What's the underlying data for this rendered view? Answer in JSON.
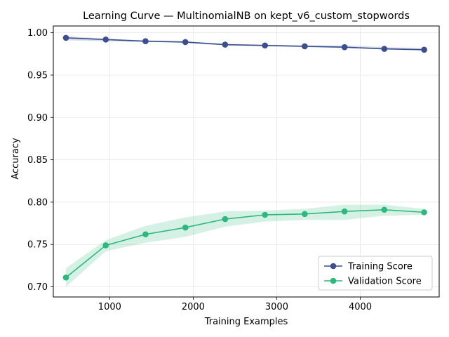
{
  "chart_data": {
    "type": "line",
    "title": "Learning Curve — MultinomialNB on kept_v6_custom_stopwords",
    "xlabel": "Training Examples",
    "ylabel": "Accuracy",
    "xlim": [
      325,
      4945
    ],
    "ylim": [
      0.688,
      1.008
    ],
    "x_ticks": [
      1000,
      2000,
      3000,
      4000
    ],
    "x_tick_labels": [
      "1000",
      "2000",
      "3000",
      "4000"
    ],
    "y_ticks": [
      0.7,
      0.75,
      0.8,
      0.85,
      0.9,
      0.95,
      1.0
    ],
    "y_tick_labels": [
      "0.70",
      "0.75",
      "0.80",
      "0.85",
      "0.90",
      "0.95",
      "1.00"
    ],
    "grid": true,
    "legend_position": "bottom-right",
    "x": [
      476,
      953,
      1429,
      1906,
      2382,
      2859,
      3335,
      3812,
      4288,
      4765
    ],
    "series": [
      {
        "name": "Training Score",
        "color": "#3b4f8e",
        "values": [
          0.994,
          0.992,
          0.99,
          0.989,
          0.986,
          0.985,
          0.984,
          0.983,
          0.981,
          0.98
        ],
        "band_lower": [
          0.991,
          0.99,
          0.989,
          0.988,
          0.985,
          0.984,
          0.983,
          0.982,
          0.98,
          0.979
        ],
        "band_upper": [
          0.996,
          0.993,
          0.991,
          0.99,
          0.987,
          0.986,
          0.985,
          0.985,
          0.983,
          0.982
        ]
      },
      {
        "name": "Validation Score",
        "color": "#2db87d",
        "values": [
          0.711,
          0.749,
          0.762,
          0.77,
          0.78,
          0.785,
          0.786,
          0.789,
          0.791,
          0.788
        ],
        "band_lower": [
          0.7,
          0.742,
          0.752,
          0.759,
          0.771,
          0.777,
          0.779,
          0.779,
          0.784,
          0.785
        ],
        "band_upper": [
          0.722,
          0.755,
          0.772,
          0.782,
          0.789,
          0.79,
          0.792,
          0.797,
          0.797,
          0.792
        ]
      }
    ]
  }
}
